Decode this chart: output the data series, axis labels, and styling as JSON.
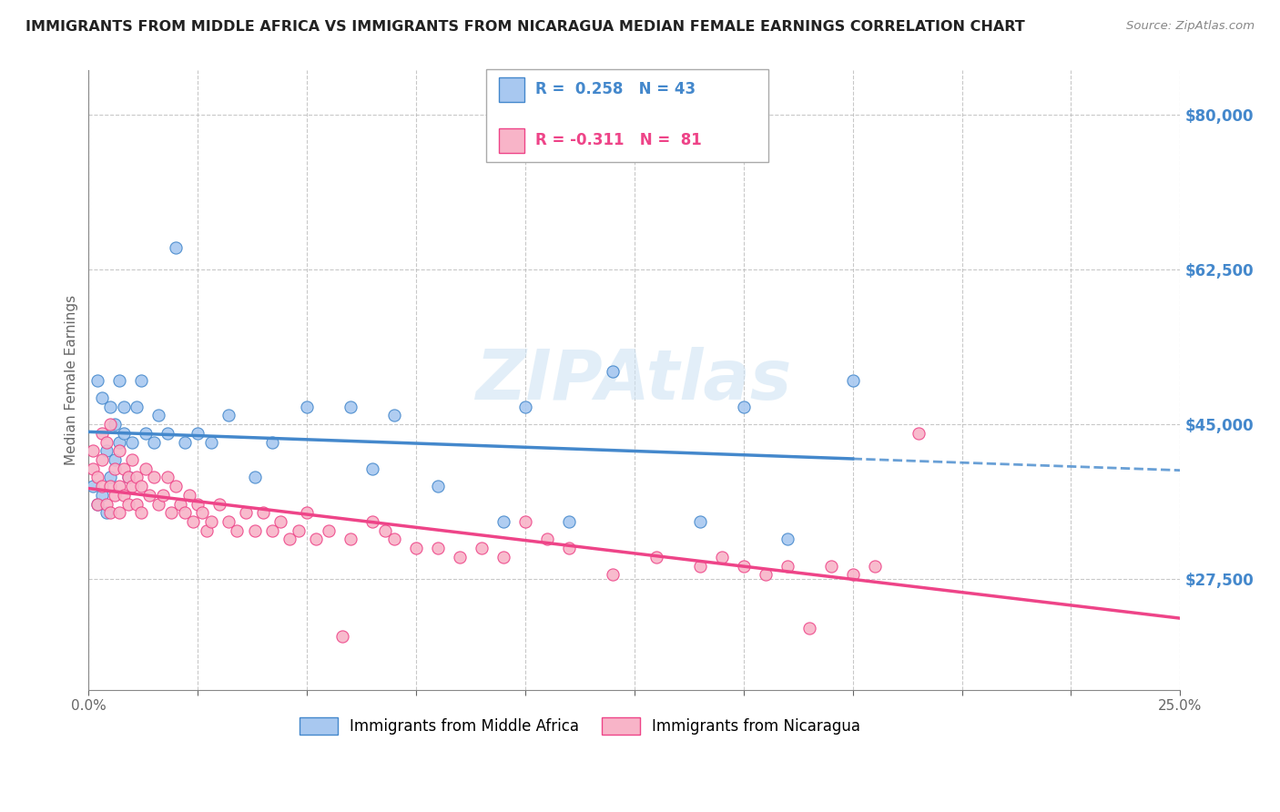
{
  "title": "IMMIGRANTS FROM MIDDLE AFRICA VS IMMIGRANTS FROM NICARAGUA MEDIAN FEMALE EARNINGS CORRELATION CHART",
  "source": "Source: ZipAtlas.com",
  "ylabel": "Median Female Earnings",
  "xlim": [
    0.0,
    0.25
  ],
  "ylim": [
    15000,
    85000
  ],
  "yticks": [
    27500,
    45000,
    62500,
    80000
  ],
  "ytick_labels": [
    "$27,500",
    "$45,000",
    "$62,500",
    "$80,000"
  ],
  "xticks": [
    0.0,
    0.025,
    0.05,
    0.075,
    0.1,
    0.125,
    0.15,
    0.175,
    0.2,
    0.225,
    0.25
  ],
  "xtick_labels": [
    "0.0%",
    "",
    "",
    "",
    "",
    "",
    "",
    "",
    "",
    "",
    "25.0%"
  ],
  "blue_R": 0.258,
  "blue_N": 43,
  "pink_R": -0.311,
  "pink_N": 81,
  "blue_color": "#a8c8f0",
  "pink_color": "#f8b4c8",
  "blue_line_color": "#4488cc",
  "pink_line_color": "#ee4488",
  "watermark": "ZIPAtlas",
  "legend_label1": "Immigrants from Middle Africa",
  "legend_label2": "Immigrants from Nicaragua",
  "blue_scatter_x": [
    0.001,
    0.002,
    0.002,
    0.003,
    0.003,
    0.004,
    0.004,
    0.005,
    0.005,
    0.006,
    0.006,
    0.007,
    0.007,
    0.008,
    0.008,
    0.009,
    0.01,
    0.011,
    0.012,
    0.013,
    0.015,
    0.016,
    0.018,
    0.02,
    0.022,
    0.025,
    0.028,
    0.032,
    0.038,
    0.042,
    0.05,
    0.06,
    0.065,
    0.07,
    0.08,
    0.095,
    0.1,
    0.11,
    0.12,
    0.14,
    0.15,
    0.16,
    0.175
  ],
  "blue_scatter_y": [
    38000,
    36000,
    50000,
    48000,
    37000,
    42000,
    35000,
    47000,
    39000,
    45000,
    41000,
    50000,
    43000,
    47000,
    44000,
    39000,
    43000,
    47000,
    50000,
    44000,
    43000,
    46000,
    44000,
    65000,
    43000,
    44000,
    43000,
    46000,
    39000,
    43000,
    47000,
    47000,
    40000,
    46000,
    38000,
    34000,
    47000,
    34000,
    51000,
    34000,
    47000,
    32000,
    50000
  ],
  "pink_scatter_x": [
    0.001,
    0.001,
    0.002,
    0.002,
    0.003,
    0.003,
    0.003,
    0.004,
    0.004,
    0.005,
    0.005,
    0.005,
    0.006,
    0.006,
    0.007,
    0.007,
    0.007,
    0.008,
    0.008,
    0.009,
    0.009,
    0.01,
    0.01,
    0.011,
    0.011,
    0.012,
    0.012,
    0.013,
    0.014,
    0.015,
    0.016,
    0.017,
    0.018,
    0.019,
    0.02,
    0.021,
    0.022,
    0.023,
    0.024,
    0.025,
    0.026,
    0.027,
    0.028,
    0.03,
    0.032,
    0.034,
    0.036,
    0.038,
    0.04,
    0.042,
    0.044,
    0.046,
    0.048,
    0.05,
    0.052,
    0.055,
    0.058,
    0.06,
    0.065,
    0.068,
    0.07,
    0.075,
    0.08,
    0.085,
    0.09,
    0.095,
    0.1,
    0.105,
    0.11,
    0.12,
    0.13,
    0.14,
    0.145,
    0.15,
    0.155,
    0.16,
    0.165,
    0.17,
    0.175,
    0.18,
    0.19
  ],
  "pink_scatter_y": [
    40000,
    42000,
    36000,
    39000,
    44000,
    38000,
    41000,
    43000,
    36000,
    45000,
    38000,
    35000,
    40000,
    37000,
    42000,
    38000,
    35000,
    40000,
    37000,
    39000,
    36000,
    41000,
    38000,
    39000,
    36000,
    38000,
    35000,
    40000,
    37000,
    39000,
    36000,
    37000,
    39000,
    35000,
    38000,
    36000,
    35000,
    37000,
    34000,
    36000,
    35000,
    33000,
    34000,
    36000,
    34000,
    33000,
    35000,
    33000,
    35000,
    33000,
    34000,
    32000,
    33000,
    35000,
    32000,
    33000,
    21000,
    32000,
    34000,
    33000,
    32000,
    31000,
    31000,
    30000,
    31000,
    30000,
    34000,
    32000,
    31000,
    28000,
    30000,
    29000,
    30000,
    29000,
    28000,
    29000,
    22000,
    29000,
    28000,
    29000,
    44000
  ]
}
